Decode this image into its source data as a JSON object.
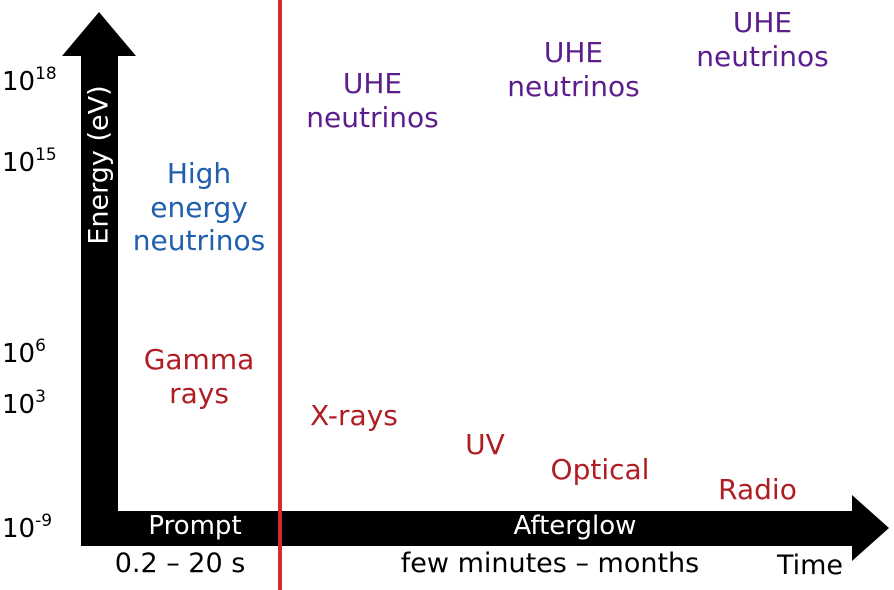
{
  "axes": {
    "y_label": "Energy (eV)",
    "x_label": "Time",
    "y_ticks": [
      {
        "base": "10",
        "exp": "18"
      },
      {
        "base": "10",
        "exp": "15"
      },
      {
        "base": "10",
        "exp": "6"
      },
      {
        "base": "10",
        "exp": "3"
      },
      {
        "base": "10",
        "exp": "-9"
      }
    ]
  },
  "phases": {
    "prompt": {
      "label": "Prompt",
      "duration": "0.2 – 20 s"
    },
    "afterglow": {
      "label": "Afterglow",
      "duration": "few minutes – months"
    }
  },
  "prompt_emissions": {
    "neutrinos": [
      "High",
      "energy",
      "neutrinos"
    ],
    "gamma": [
      "Gamma",
      "rays"
    ]
  },
  "afterglow_emissions": {
    "uhe": [
      [
        "UHE",
        "neutrinos"
      ],
      [
        "UHE",
        "neutrinos"
      ],
      [
        "UHE",
        "neutrinos"
      ]
    ],
    "xrays": "X-rays",
    "uv": "UV",
    "optical": "Optical",
    "radio": "Radio"
  },
  "colors": {
    "axis": "#000000",
    "divider": "#d42b2b",
    "uhe_neutrinos": "#5b1e8c",
    "high_energy_neutrinos": "#1f5fae",
    "photons": "#b01e24"
  }
}
